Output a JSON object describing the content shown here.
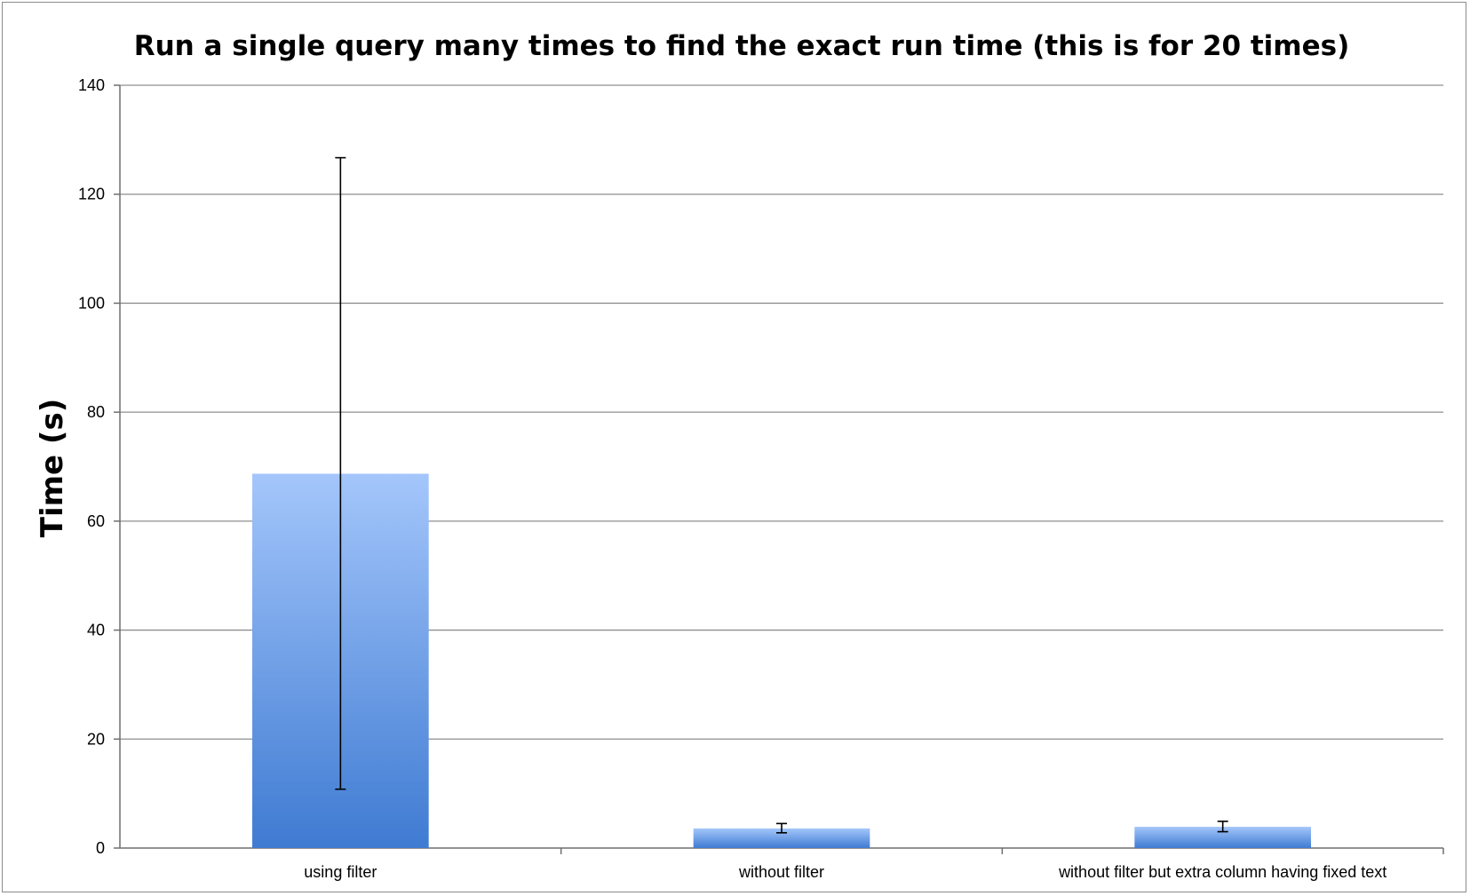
{
  "chart_data": {
    "type": "bar",
    "title": "Run a single query many times to find the exact run time (this is for 20 times)",
    "xlabel": "",
    "ylabel": "Time (s)",
    "ylim": [
      0,
      140
    ],
    "yticks": [
      "0",
      "20",
      "40",
      "60",
      "80",
      "100",
      "120",
      "140"
    ],
    "grid": true,
    "legend": "none",
    "categories": [
      "using filter",
      "without filter",
      "without filter but extra column having fixed text"
    ],
    "values": [
      68.7,
      3.6,
      3.9
    ],
    "error_bars": [
      {
        "low": 10.8,
        "high": 126.7
      },
      {
        "low": 2.8,
        "high": 4.5
      },
      {
        "low": 3.0,
        "high": 4.9
      }
    ],
    "colors": {
      "bar_top": "#a4c6fb",
      "bar_bottom": "#3f7bd2",
      "grid": "#8f8f8f",
      "error_bar": "#000000"
    }
  }
}
